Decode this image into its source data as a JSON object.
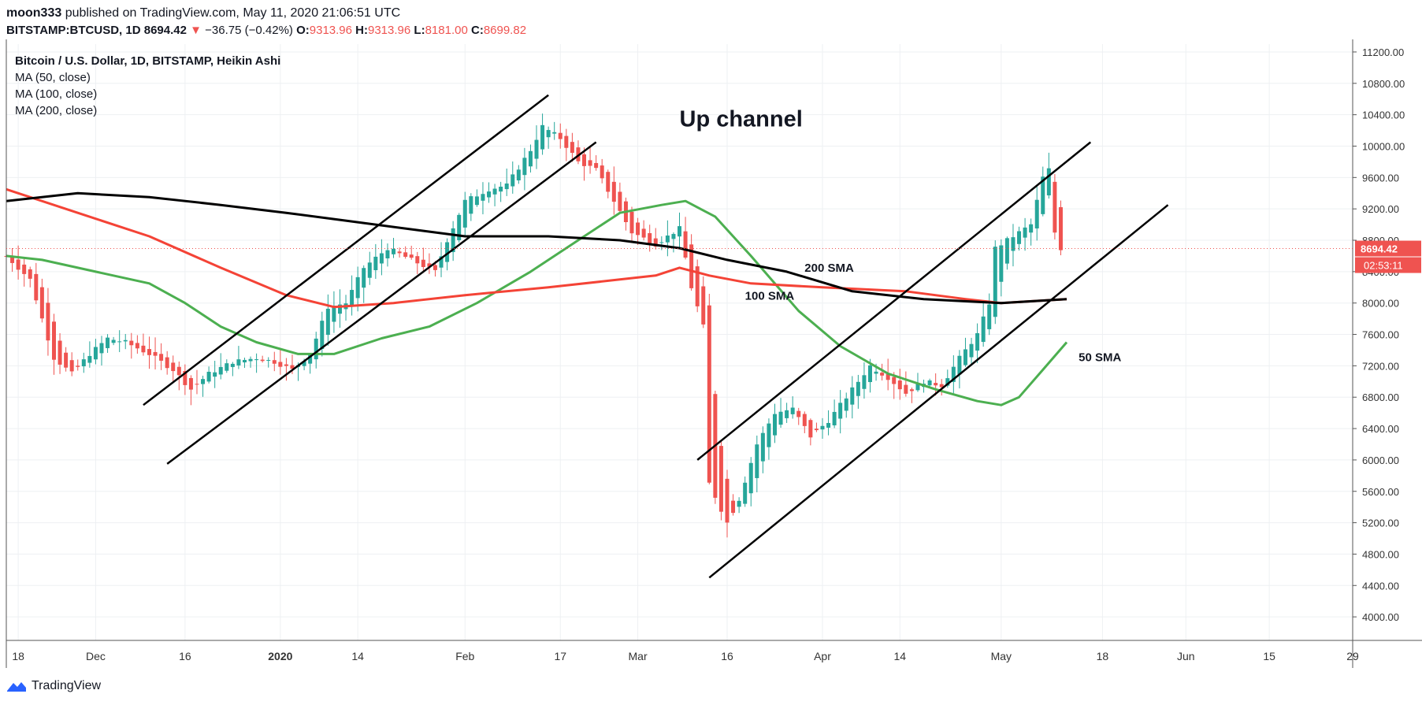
{
  "header": {
    "author": "moon333",
    "published_text": " published on TradingView.com, May 11, 2020 21:06:51 UTC",
    "symbol": "BITSTAMP:BTCUSD, 1D",
    "last": "8694.42",
    "change_arrow": "▼",
    "change": "−36.75 (−0.42%)",
    "o_label": "O:",
    "o": "9313.96",
    "h_label": "H:",
    "h": "9313.96",
    "l_label": "L:",
    "l": "8181.00",
    "c_label": "C:",
    "c": "8699.82"
  },
  "legend": {
    "title": "Bitcoin / U.S. Dollar, 1D, BITSTAMP, Heikin Ashi",
    "ma50": "MA (50, close)",
    "ma100": "MA (100, close)",
    "ma200": "MA (200, close)"
  },
  "footer": {
    "brand": "TradingView",
    "logo_icon": "tradingview-logo-icon"
  },
  "colors": {
    "up": "#26a69a",
    "down": "#ef5350",
    "ma50": "#4caf50",
    "ma100": "#f44336",
    "ma200": "#000000",
    "channel": "#000000",
    "grid": "#eef0f3",
    "price_badge": "#ef5350"
  },
  "chart_data": {
    "type": "candlestick",
    "style": "Heikin Ashi",
    "ylim": [
      3700,
      11300
    ],
    "yticks": [
      4000,
      4400,
      4800,
      5200,
      5600,
      6000,
      6400,
      6800,
      7200,
      7600,
      8000,
      8400,
      8800,
      9200,
      9600,
      10000,
      10400,
      10800,
      11200
    ],
    "ytick_labels": [
      "4000.00",
      "4400.00",
      "4800.00",
      "5200.00",
      "5600.00",
      "6000.00",
      "6400.00",
      "6800.00",
      "7200.00",
      "7600.00",
      "8000.00",
      "8400.00",
      "8800.00",
      "9200.00",
      "9600.00",
      "10000.00",
      "10400.00",
      "10800.00",
      "11200.00"
    ],
    "x_start": "2019-11-16",
    "x_end": "2020-06-29",
    "xticks": [
      {
        "date": "2019-11-18",
        "label": "18",
        "bold": false
      },
      {
        "date": "2019-12-01",
        "label": "Dec",
        "bold": false
      },
      {
        "date": "2019-12-16",
        "label": "16",
        "bold": false
      },
      {
        "date": "2020-01-01",
        "label": "2020",
        "bold": true
      },
      {
        "date": "2020-01-14",
        "label": "14",
        "bold": false
      },
      {
        "date": "2020-02-01",
        "label": "Feb",
        "bold": false
      },
      {
        "date": "2020-02-17",
        "label": "17",
        "bold": false
      },
      {
        "date": "2020-03-01",
        "label": "Mar",
        "bold": false
      },
      {
        "date": "2020-03-16",
        "label": "16",
        "bold": false
      },
      {
        "date": "2020-04-01",
        "label": "Apr",
        "bold": false
      },
      {
        "date": "2020-04-14",
        "label": "14",
        "bold": false
      },
      {
        "date": "2020-05-01",
        "label": "May",
        "bold": false
      },
      {
        "date": "2020-05-18",
        "label": "18",
        "bold": false
      },
      {
        "date": "2020-06-01",
        "label": "Jun",
        "bold": false
      },
      {
        "date": "2020-06-15",
        "label": "15",
        "bold": false
      },
      {
        "date": "2020-06-29",
        "label": "29",
        "bold": false
      }
    ],
    "last_price": 8694.42,
    "last_price_label": "8694.42",
    "countdown_label": "02:53:11",
    "close_path": [
      [
        "2019-11-16",
        8600
      ],
      [
        "2019-11-20",
        8300
      ],
      [
        "2019-11-24",
        7300
      ],
      [
        "2019-11-27",
        7100
      ],
      [
        "2019-11-30",
        7350
      ],
      [
        "2019-12-03",
        7550
      ],
      [
        "2019-12-06",
        7500
      ],
      [
        "2019-12-10",
        7350
      ],
      [
        "2019-12-14",
        7150
      ],
      [
        "2019-12-17",
        6900
      ],
      [
        "2019-12-20",
        7100
      ],
      [
        "2019-12-24",
        7250
      ],
      [
        "2019-12-28",
        7300
      ],
      [
        "2019-12-31",
        7250
      ],
      [
        "2020-01-03",
        7150
      ],
      [
        "2020-01-06",
        7350
      ],
      [
        "2020-01-09",
        7950
      ],
      [
        "2020-01-12",
        8000
      ],
      [
        "2020-01-15",
        8450
      ],
      [
        "2020-01-19",
        8700
      ],
      [
        "2020-01-23",
        8550
      ],
      [
        "2020-01-27",
        8400
      ],
      [
        "2020-01-29",
        8800
      ],
      [
        "2020-02-01",
        9300
      ],
      [
        "2020-02-05",
        9450
      ],
      [
        "2020-02-08",
        9500
      ],
      [
        "2020-02-12",
        9950
      ],
      [
        "2020-02-14",
        10250
      ],
      [
        "2020-02-17",
        10100
      ],
      [
        "2020-02-20",
        9800
      ],
      [
        "2020-02-23",
        9700
      ],
      [
        "2020-02-26",
        9300
      ],
      [
        "2020-02-29",
        8900
      ],
      [
        "2020-03-04",
        8750
      ],
      [
        "2020-03-08",
        8950
      ],
      [
        "2020-03-10",
        8200
      ],
      [
        "2020-03-12",
        7700
      ],
      [
        "2020-03-13",
        5700
      ],
      [
        "2020-03-16",
        5200
      ],
      [
        "2020-03-18",
        5500
      ],
      [
        "2020-03-21",
        6200
      ],
      [
        "2020-03-24",
        6600
      ],
      [
        "2020-03-27",
        6650
      ],
      [
        "2020-03-30",
        6300
      ],
      [
        "2020-04-02",
        6500
      ],
      [
        "2020-04-06",
        6900
      ],
      [
        "2020-04-09",
        7200
      ],
      [
        "2020-04-12",
        7050
      ],
      [
        "2020-04-15",
        6850
      ],
      [
        "2020-04-18",
        7000
      ],
      [
        "2020-04-21",
        6950
      ],
      [
        "2020-04-24",
        7300
      ],
      [
        "2020-04-27",
        7600
      ],
      [
        "2020-04-29",
        8000
      ],
      [
        "2020-04-30",
        8700
      ],
      [
        "2020-05-03",
        8850
      ],
      [
        "2020-05-06",
        9000
      ],
      [
        "2020-05-08",
        9600
      ],
      [
        "2020-05-09",
        9700
      ],
      [
        "2020-05-10",
        8900
      ],
      [
        "2020-05-11",
        8695
      ]
    ],
    "series": [
      {
        "name": "MA (50, close)",
        "points": [
          [
            "2019-11-16",
            8600
          ],
          [
            "2019-11-22",
            8550
          ],
          [
            "2019-12-01",
            8400
          ],
          [
            "2019-12-10",
            8250
          ],
          [
            "2019-12-16",
            8000
          ],
          [
            "2019-12-22",
            7700
          ],
          [
            "2019-12-28",
            7500
          ],
          [
            "2020-01-04",
            7350
          ],
          [
            "2020-01-10",
            7350
          ],
          [
            "2020-01-18",
            7550
          ],
          [
            "2020-01-26",
            7700
          ],
          [
            "2020-02-03",
            8000
          ],
          [
            "2020-02-12",
            8400
          ],
          [
            "2020-02-20",
            8800
          ],
          [
            "2020-02-27",
            9150
          ],
          [
            "2020-03-05",
            9250
          ],
          [
            "2020-03-09",
            9300
          ],
          [
            "2020-03-14",
            9100
          ],
          [
            "2020-03-20",
            8600
          ],
          [
            "2020-03-28",
            7900
          ],
          [
            "2020-04-04",
            7450
          ],
          [
            "2020-04-12",
            7100
          ],
          [
            "2020-04-20",
            6900
          ],
          [
            "2020-04-27",
            6750
          ],
          [
            "2020-05-01",
            6700
          ],
          [
            "2020-05-04",
            6800
          ],
          [
            "2020-05-08",
            7150
          ],
          [
            "2020-05-12",
            7500
          ]
        ]
      },
      {
        "name": "MA (100, close)",
        "points": [
          [
            "2019-11-16",
            9450
          ],
          [
            "2019-11-28",
            9150
          ],
          [
            "2019-12-10",
            8850
          ],
          [
            "2019-12-22",
            8450
          ],
          [
            "2020-01-02",
            8100
          ],
          [
            "2020-01-10",
            7950
          ],
          [
            "2020-01-20",
            8000
          ],
          [
            "2020-02-01",
            8100
          ],
          [
            "2020-02-15",
            8200
          ],
          [
            "2020-02-27",
            8300
          ],
          [
            "2020-03-04",
            8350
          ],
          [
            "2020-03-08",
            8450
          ],
          [
            "2020-03-13",
            8350
          ],
          [
            "2020-03-20",
            8250
          ],
          [
            "2020-04-01",
            8200
          ],
          [
            "2020-04-15",
            8150
          ],
          [
            "2020-04-25",
            8050
          ],
          [
            "2020-05-01",
            8000
          ],
          [
            "2020-05-12",
            8050
          ]
        ]
      },
      {
        "name": "MA (200, close)",
        "points": [
          [
            "2019-11-16",
            9300
          ],
          [
            "2019-11-28",
            9400
          ],
          [
            "2019-12-10",
            9350
          ],
          [
            "2019-12-22",
            9250
          ],
          [
            "2020-01-02",
            9150
          ],
          [
            "2020-01-12",
            9050
          ],
          [
            "2020-01-22",
            8950
          ],
          [
            "2020-02-01",
            8850
          ],
          [
            "2020-02-15",
            8850
          ],
          [
            "2020-02-27",
            8800
          ],
          [
            "2020-03-08",
            8700
          ],
          [
            "2020-03-16",
            8550
          ],
          [
            "2020-03-26",
            8400
          ],
          [
            "2020-04-06",
            8150
          ],
          [
            "2020-04-18",
            8050
          ],
          [
            "2020-05-01",
            8000
          ],
          [
            "2020-05-12",
            8050
          ]
        ]
      }
    ],
    "channels": [
      [
        [
          "2019-12-09",
          6700
        ],
        [
          "2020-02-15",
          10650
        ]
      ],
      [
        [
          "2019-12-13",
          5950
        ],
        [
          "2020-02-23",
          10050
        ]
      ],
      [
        [
          "2020-03-11",
          6000
        ],
        [
          "2020-05-16",
          10050
        ]
      ],
      [
        [
          "2020-03-13",
          4500
        ],
        [
          "2020-05-29",
          9250
        ]
      ]
    ],
    "annotations": [
      {
        "text": "Up channel",
        "date": "2020-03-08",
        "price": 10250,
        "size": "large"
      },
      {
        "text": "200 SMA",
        "date": "2020-03-29",
        "price": 8400,
        "size": "small"
      },
      {
        "text": "100 SMA",
        "date": "2020-03-19",
        "price": 8040,
        "size": "small"
      },
      {
        "text": "50 SMA",
        "date": "2020-05-14",
        "price": 7260,
        "size": "small"
      }
    ]
  }
}
